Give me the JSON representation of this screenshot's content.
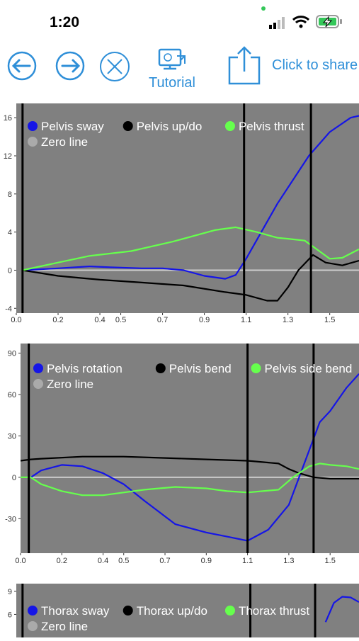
{
  "status_bar": {
    "time": "1:20"
  },
  "toolbar": {
    "back_icon": "arrow-left-circle-icon",
    "forward_icon": "arrow-right-circle-icon",
    "close_icon": "x-circle-icon",
    "tutorial_label": "Tutorial",
    "share_label": "Click to share"
  },
  "colors": {
    "accent": "#2f8fd8",
    "plot_bg": "#808080",
    "blue": "#1515e6",
    "black": "#000000",
    "green": "#66ff4d",
    "zero": "#cccccc"
  },
  "chart_data": [
    {
      "type": "line",
      "ylim": [
        -4.5,
        17.5
      ],
      "xlim": [
        0,
        1.64
      ],
      "y_ticks": [
        "16",
        "12",
        "8",
        "4",
        "0",
        "-4"
      ],
      "x_ticks": [
        "0.0",
        "0.2",
        "0.4",
        "0.5",
        "0.7",
        "0.9",
        "1.1",
        "1.3",
        "1.5"
      ],
      "legend": [
        "Pelvis sway",
        "Pelvis up/do",
        "Pelvis thrust",
        "Zero line"
      ],
      "series": [
        {
          "name": "Pelvis sway",
          "color": "#1515e6",
          "x": [
            0.03,
            0.2,
            0.35,
            0.45,
            0.6,
            0.7,
            0.8,
            0.9,
            1.0,
            1.05,
            1.1,
            1.25,
            1.4,
            1.5,
            1.6,
            1.64
          ],
          "y": [
            0,
            0.2,
            0.4,
            0.3,
            0.2,
            0.2,
            0,
            -0.6,
            -0.9,
            -0.5,
            1.2,
            7,
            12,
            14.5,
            16,
            16.2
          ]
        },
        {
          "name": "Pelvis up/do",
          "color": "#000000",
          "x": [
            0.03,
            0.2,
            0.4,
            0.6,
            0.8,
            1.0,
            1.1,
            1.2,
            1.25,
            1.3,
            1.35,
            1.42,
            1.48,
            1.56,
            1.64
          ],
          "y": [
            0,
            -0.6,
            -1,
            -1.3,
            -1.6,
            -2.3,
            -2.6,
            -3.2,
            -3.2,
            -1.8,
            0,
            1.6,
            0.8,
            0.5,
            1
          ]
        },
        {
          "name": "Pelvis thrust",
          "color": "#66ff4d",
          "x": [
            0.03,
            0.2,
            0.35,
            0.55,
            0.75,
            0.95,
            1.05,
            1.15,
            1.25,
            1.3,
            1.38,
            1.45,
            1.5,
            1.56,
            1.64
          ],
          "y": [
            0,
            0.8,
            1.5,
            2,
            3,
            4.2,
            4.5,
            4,
            3.4,
            3.3,
            3.1,
            2,
            1.2,
            1.3,
            2.2
          ]
        }
      ],
      "vlines": [
        0.03,
        1.09,
        1.41
      ]
    },
    {
      "type": "line",
      "ylim": [
        -55,
        97
      ],
      "xlim": [
        0,
        1.64
      ],
      "y_ticks": [
        "90",
        "60",
        "30",
        "0",
        "-30"
      ],
      "x_ticks": [
        "0.0",
        "0.2",
        "0.4",
        "0.5",
        "0.7",
        "0.9",
        "1.1",
        "1.3",
        "1.5"
      ],
      "legend": [
        "Pelvis rotation",
        "Pelvis bend",
        "Pelvis side bend",
        "Zero line"
      ],
      "series": [
        {
          "name": "Pelvis rotation",
          "color": "#1515e6",
          "x": [
            0.05,
            0.1,
            0.2,
            0.3,
            0.4,
            0.5,
            0.6,
            0.75,
            0.9,
            1.0,
            1.1,
            1.2,
            1.3,
            1.4,
            1.45,
            1.5,
            1.58,
            1.64
          ],
          "y": [
            0,
            5,
            9,
            8,
            3,
            -5,
            -17,
            -34,
            -40,
            -43,
            -46,
            -38,
            -20,
            20,
            40,
            48,
            65,
            75
          ]
        },
        {
          "name": "Pelvis bend",
          "color": "#000000",
          "x": [
            0.0,
            0.05,
            0.1,
            0.3,
            0.5,
            0.7,
            0.9,
            1.1,
            1.25,
            1.3,
            1.35,
            1.42,
            1.5,
            1.64
          ],
          "y": [
            12,
            13,
            13.5,
            15,
            15,
            14,
            13,
            12,
            10,
            6,
            3,
            0,
            -1,
            -1
          ]
        },
        {
          "name": "Pelvis side bend",
          "color": "#66ff4d",
          "x": [
            0.0,
            0.05,
            0.1,
            0.2,
            0.3,
            0.4,
            0.5,
            0.6,
            0.75,
            0.9,
            1.0,
            1.1,
            1.25,
            1.32,
            1.4,
            1.45,
            1.5,
            1.58,
            1.64
          ],
          "y": [
            0,
            0,
            -5,
            -10,
            -13,
            -13,
            -11,
            -9,
            -7,
            -8,
            -10,
            -11,
            -9,
            0,
            8,
            10,
            9,
            8,
            6
          ]
        }
      ],
      "vlines": [
        0.04,
        1.1,
        1.42
      ]
    },
    {
      "type": "line",
      "ylim": [
        3,
        10
      ],
      "xlim": [
        0,
        1.64
      ],
      "y_ticks": [
        "9",
        "6"
      ],
      "x_ticks": [],
      "legend": [
        "Thorax sway",
        "Thorax up/do",
        "Thorax thrust",
        "Zero line"
      ],
      "series": [
        {
          "name": "Thorax sway",
          "color": "#1515e6",
          "x": [
            1.48,
            1.52,
            1.56,
            1.6,
            1.64
          ],
          "y": [
            5,
            7.5,
            8.3,
            8.2,
            7.6
          ]
        }
      ],
      "vlines": [
        0.03,
        1.12,
        1.43
      ]
    }
  ]
}
